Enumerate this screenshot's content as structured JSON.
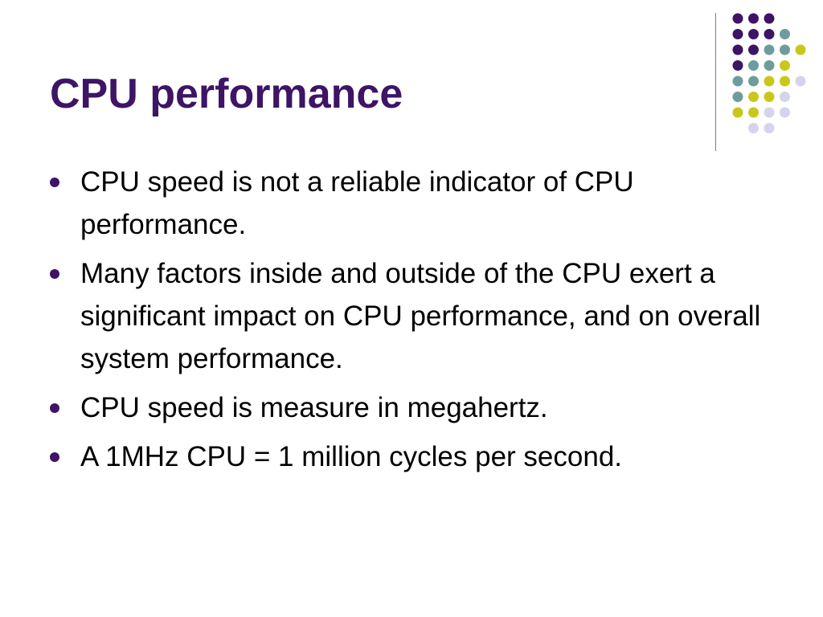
{
  "slide": {
    "title": "CPU performance",
    "bullets": [
      "CPU speed is not a reliable indicator of CPU performance.",
      "Many factors inside and outside of the CPU exert a significant impact on CPU performance, and on overall system performance.",
      "CPU speed is measure in megahertz.",
      "A 1MHz CPU = 1 million cycles per second."
    ]
  },
  "theme": {
    "title_color": "#3d1466",
    "dot_colors": {
      "purple": "#3d1466",
      "teal": "#6e9c9e",
      "yellow": "#c8c81a",
      "lavender": "#d4d4ea"
    },
    "dot_rows": [
      [
        "purple",
        "purple",
        "purple"
      ],
      [
        "purple",
        "purple",
        "purple",
        "teal"
      ],
      [
        "purple",
        "purple",
        "teal",
        "teal",
        "yellow"
      ],
      [
        "purple",
        "teal",
        "teal",
        "yellow"
      ],
      [
        "teal",
        "teal",
        "yellow",
        "yellow",
        "lavender"
      ],
      [
        "teal",
        "yellow",
        "yellow",
        "lavender"
      ],
      [
        "yellow",
        "yellow",
        "lavender",
        "lavender"
      ],
      [
        "lavender",
        "lavender"
      ]
    ]
  }
}
